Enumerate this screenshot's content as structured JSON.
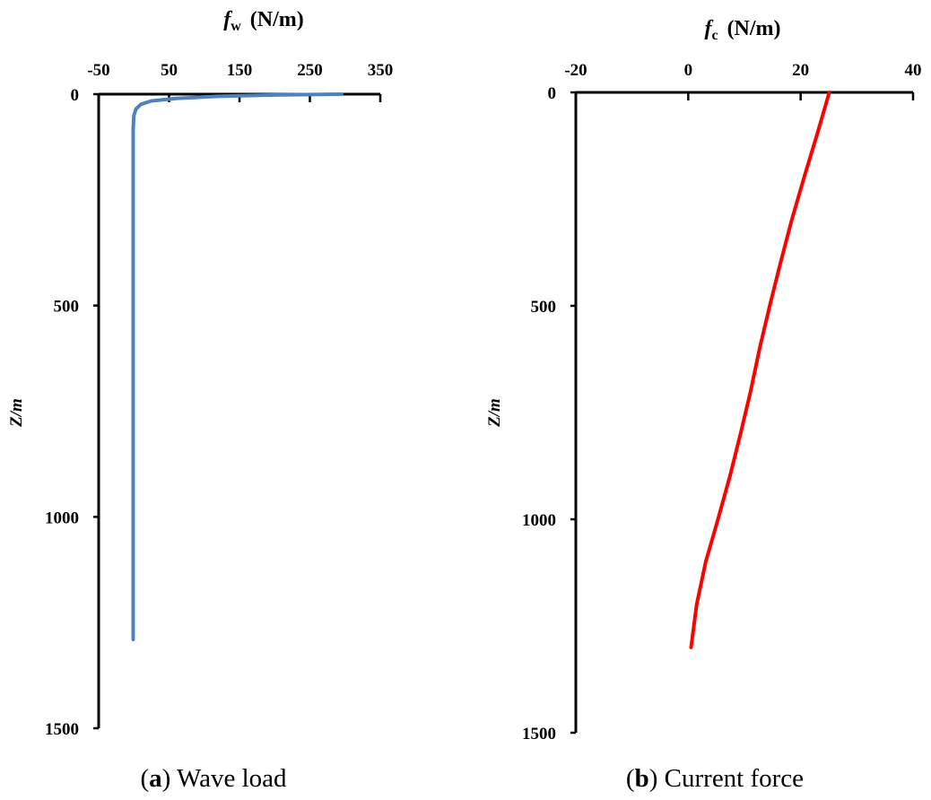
{
  "chart_data": [
    {
      "type": "line",
      "caption_letter": "a",
      "caption_text": "Wave load",
      "x_title_symbol": "f",
      "x_title_subscript": "w",
      "x_title_units": "(N/m)",
      "ylabel": "Z/m",
      "x_axis_position": "top",
      "y_inverted": true,
      "xlim": [
        -50,
        350
      ],
      "ylim": [
        0,
        1500
      ],
      "x_ticks": [
        "-50",
        "50",
        "150",
        "250",
        "350"
      ],
      "y_ticks": [
        "0",
        "500",
        "1000",
        "1500"
      ],
      "grid": false,
      "series": [
        {
          "color": "#4f81bd",
          "points": [
            {
              "x": 295,
              "y": 0
            },
            {
              "x": 200,
              "y": 2
            },
            {
              "x": 120,
              "y": 5
            },
            {
              "x": 60,
              "y": 10
            },
            {
              "x": 25,
              "y": 16
            },
            {
              "x": 10,
              "y": 24
            },
            {
              "x": 3,
              "y": 35
            },
            {
              "x": 0,
              "y": 50
            },
            {
              "x": -1,
              "y": 80
            },
            {
              "x": -1,
              "y": 300
            },
            {
              "x": -1,
              "y": 700
            },
            {
              "x": -1,
              "y": 1000
            },
            {
              "x": -1,
              "y": 1290
            }
          ]
        }
      ]
    },
    {
      "type": "line",
      "caption_letter": "b",
      "caption_text": "Current force",
      "x_title_symbol": "f",
      "x_title_subscript": "c",
      "x_title_units": "(N/m)",
      "ylabel": "Z/m",
      "x_axis_position": "top",
      "y_inverted": true,
      "xlim": [
        -20,
        40
      ],
      "ylim": [
        0,
        1500
      ],
      "x_ticks": [
        "-20",
        "0",
        "20",
        "40"
      ],
      "y_ticks": [
        "0",
        "500",
        "1000",
        "1500"
      ],
      "grid": false,
      "series": [
        {
          "color": "#ff0000",
          "points": [
            {
              "x": 25.1,
              "y": 0
            },
            {
              "x": 22.9,
              "y": 100
            },
            {
              "x": 20.6,
              "y": 200
            },
            {
              "x": 18.4,
              "y": 300
            },
            {
              "x": 16.4,
              "y": 400
            },
            {
              "x": 14.5,
              "y": 500
            },
            {
              "x": 12.7,
              "y": 600
            },
            {
              "x": 11.1,
              "y": 700
            },
            {
              "x": 9.3,
              "y": 800
            },
            {
              "x": 7.4,
              "y": 900
            },
            {
              "x": 5.3,
              "y": 1000
            },
            {
              "x": 3.1,
              "y": 1100
            },
            {
              "x": 1.5,
              "y": 1200
            },
            {
              "x": 0.5,
              "y": 1300
            }
          ]
        }
      ]
    }
  ]
}
